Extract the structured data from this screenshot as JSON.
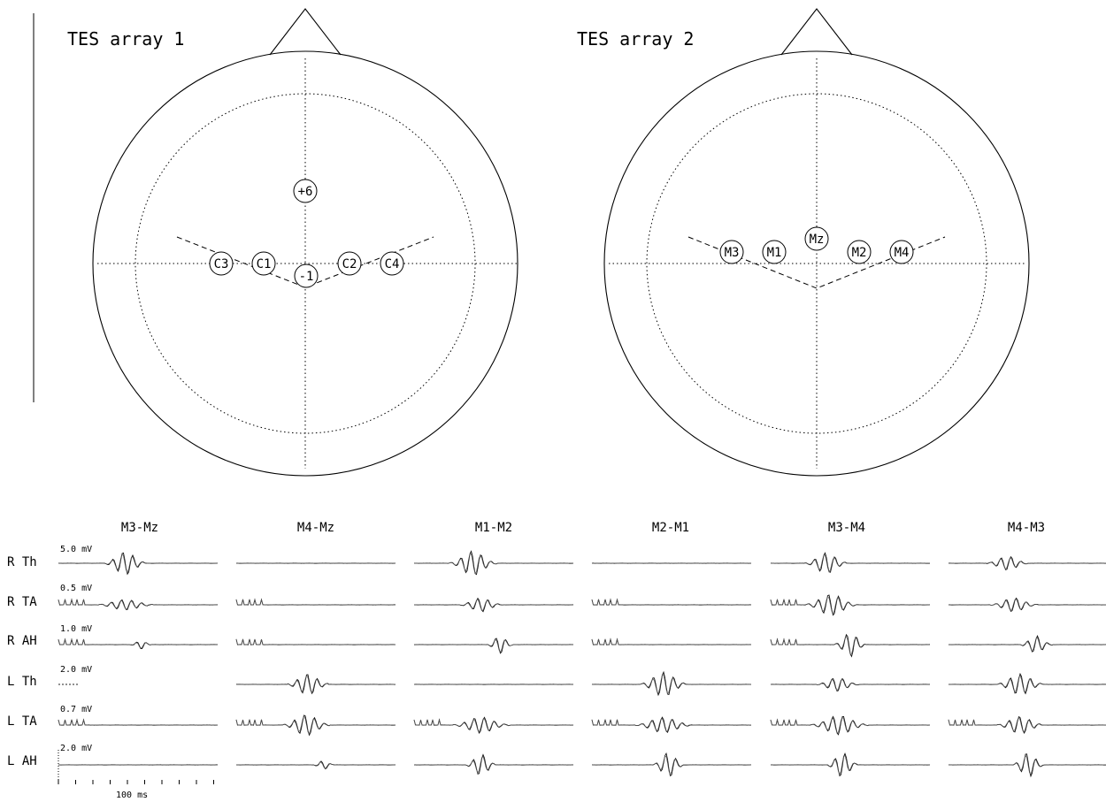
{
  "arrays": [
    {
      "title": "TES array 1",
      "electrodes": [
        {
          "label": "+6"
        },
        {
          "label": "C3"
        },
        {
          "label": "C1"
        },
        {
          "label": "-1"
        },
        {
          "label": "C2"
        },
        {
          "label": "C4"
        }
      ]
    },
    {
      "title": "TES array 2",
      "electrodes": [
        {
          "label": "M3"
        },
        {
          "label": "M1"
        },
        {
          "label": "Mz"
        },
        {
          "label": "M2"
        },
        {
          "label": "M4"
        }
      ]
    }
  ],
  "traces": {
    "columns": [
      "M3-Mz",
      "M4-Mz",
      "M1-M2",
      "M2-M1",
      "M3-M4",
      "M4-M3"
    ],
    "rows": [
      {
        "label": "R Th",
        "scale": "5.0 mV"
      },
      {
        "label": "R TA",
        "scale": "0.5 mV"
      },
      {
        "label": "R AH",
        "scale": "1.0 mV"
      },
      {
        "label": "L Th",
        "scale": "2.0 mV"
      },
      {
        "label": "L TA",
        "scale": "0.7 mV"
      },
      {
        "label": "L AH",
        "scale": "2.0 mV"
      }
    ],
    "time_scale": "100 ms"
  }
}
